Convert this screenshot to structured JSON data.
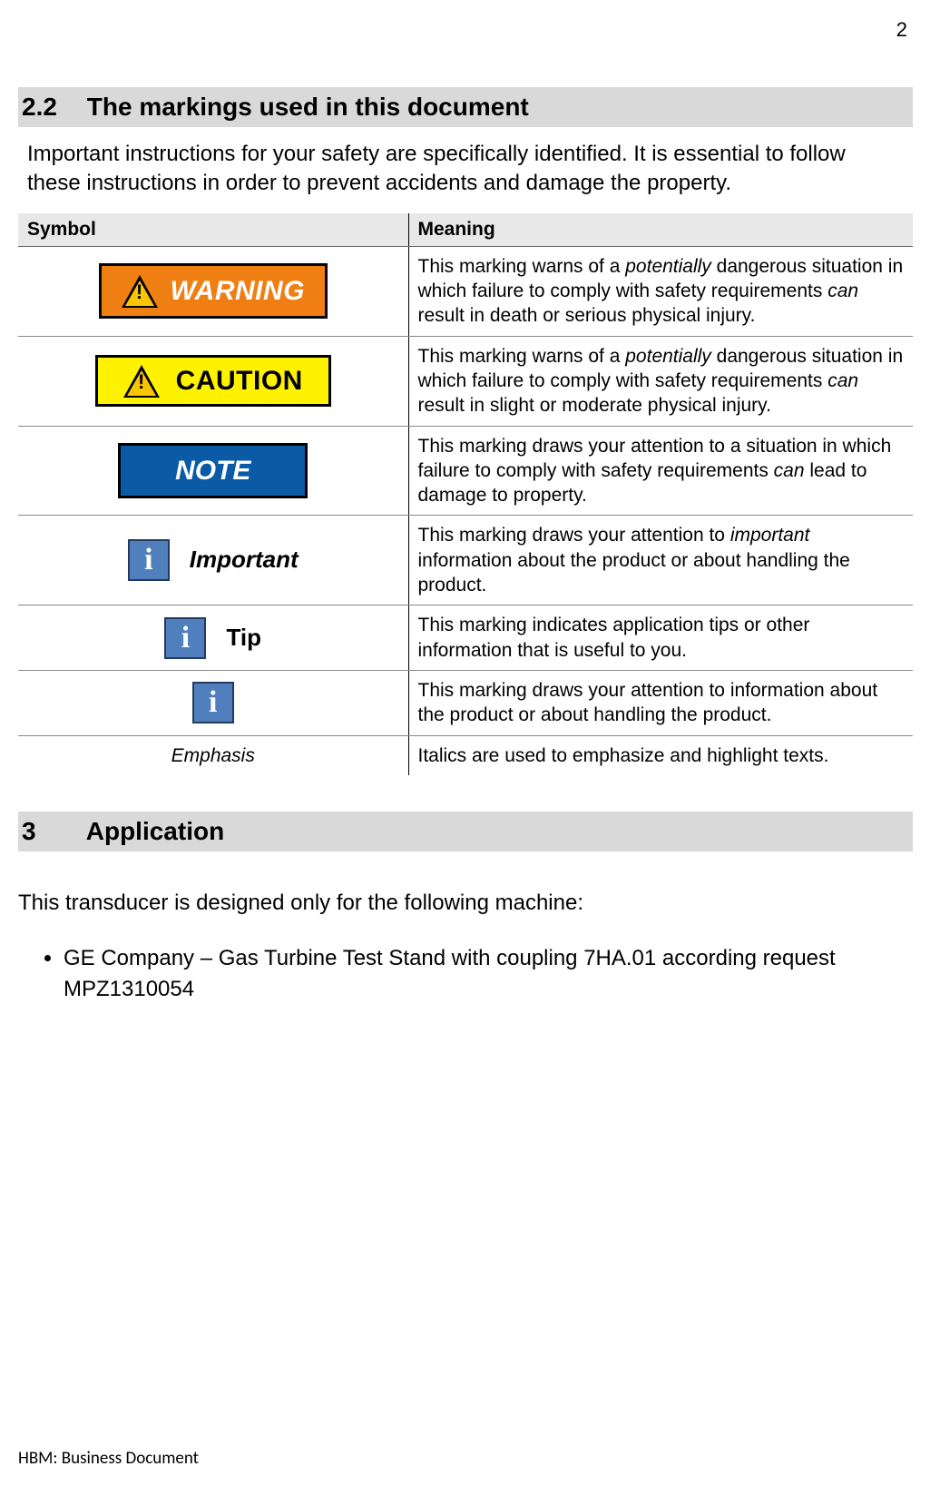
{
  "page_number": "2",
  "section_2_2": {
    "number": "2.2",
    "title": "The markings used in this document",
    "intro": "Important instructions for your safety are specifically identified. It is essential to follow these instructions in order to prevent accidents and damage the property."
  },
  "table": {
    "headers": {
      "symbol": "Symbol",
      "meaning": "Meaning"
    },
    "rows": {
      "warning": {
        "label": "WARNING",
        "meaning_pre": "This marking warns of a ",
        "meaning_em1": "potentially",
        "meaning_mid": " dangerous situation in which failure to comply with safety requirements ",
        "meaning_em2": "can",
        "meaning_post": " result in death or serious physical injury.",
        "bg_color": "#f07f13",
        "text_color": "#ffffff"
      },
      "caution": {
        "label": "CAUTION",
        "meaning_pre": "This marking warns of a ",
        "meaning_em1": "potentially",
        "meaning_mid": " dangerous situation in which failure to comply with safety requirements ",
        "meaning_em2": "can",
        "meaning_post": " result in slight or moderate physical injury.",
        "bg_color": "#fff200",
        "text_color": "#000000"
      },
      "note": {
        "label": "NOTE",
        "meaning_pre": "This marking draws your attention to a situation in which failure to comply with safety requirements ",
        "meaning_em1": "can",
        "meaning_post": " lead to damage to property.",
        "bg_color": "#0a5aa6",
        "text_color": "#ffffff"
      },
      "important": {
        "label": "Important",
        "meaning_pre": "This marking draws your attention to ",
        "meaning_em1": "important",
        "meaning_post": " information about the product or about handling the product."
      },
      "tip": {
        "label": "Tip",
        "meaning": "This marking indicates application tips or other information that is useful to you."
      },
      "info": {
        "meaning": "This marking draws your attention to information about the product or about handling the product."
      },
      "emphasis": {
        "label": "Emphasis",
        "meaning": "Italics are used to emphasize and highlight texts."
      }
    }
  },
  "section_3": {
    "number": "3",
    "title": "Application",
    "body": "This transducer is designed only for the following machine:",
    "bullet": "GE Company – Gas Turbine Test Stand  with coupling 7HA.01 according request MPZ1310054"
  },
  "footer": "HBM: Business Document"
}
